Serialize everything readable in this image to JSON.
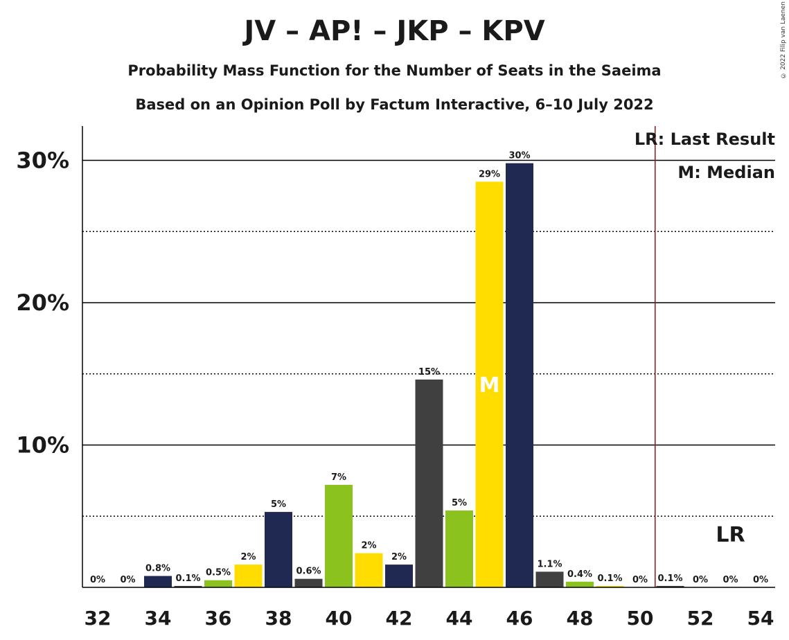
{
  "chart_data": {
    "type": "bar",
    "title": "JV – AP! – JKP – KPV",
    "subtitle_1": "Probability Mass Function for the Number of Seats in the Saeima",
    "subtitle_2": "Based on an Opinion Poll by Factum Interactive, 6–10 July 2022",
    "copyright": "© 2022 Filip van Laenen",
    "x": [
      32,
      33,
      34,
      35,
      36,
      37,
      38,
      39,
      40,
      41,
      42,
      43,
      44,
      45,
      46,
      47,
      48,
      49,
      50,
      51,
      52,
      53,
      54
    ],
    "x_tick_labels": [
      "32",
      "34",
      "36",
      "38",
      "40",
      "42",
      "44",
      "46",
      "48",
      "50",
      "52",
      "54"
    ],
    "values": [
      0,
      0,
      0.8,
      0.1,
      0.5,
      1.6,
      5.3,
      0.6,
      7.2,
      2.4,
      1.6,
      14.6,
      5.4,
      28.5,
      29.8,
      1.1,
      0.4,
      0.1,
      0,
      0.1,
      0,
      0,
      0
    ],
    "labels": [
      "0%",
      "0%",
      "0.8%",
      "0.1%",
      "0.5%",
      "2%",
      "5%",
      "0.6%",
      "7%",
      "2%",
      "2%",
      "15%",
      "5%",
      "29%",
      "30%",
      "1.1%",
      "0.4%",
      "0.1%",
      "0%",
      "0.1%",
      "0%",
      "0%",
      "0%"
    ],
    "bar_colors": [
      "#1f2951",
      "#ffdd00",
      "#1f2951",
      "#404040",
      "#8cc21e",
      "#ffdd00",
      "#1f2951",
      "#404040",
      "#8cc21e",
      "#ffdd00",
      "#1f2951",
      "#404040",
      "#8cc21e",
      "#ffdd00",
      "#1f2951",
      "#404040",
      "#8cc21e",
      "#ffdd00",
      "#1f2951",
      "#404040",
      "#8cc21e",
      "#ffdd00",
      "#1f2951"
    ],
    "ylim": [
      0,
      32
    ],
    "y_major_ticks": [
      10,
      20,
      30
    ],
    "y_tick_labels": [
      "10%",
      "20%",
      "30%"
    ],
    "y_minor_gridlines": [
      5,
      15,
      25
    ],
    "median_seat": 45,
    "median_marker": "M",
    "last_result_seat": 50.5,
    "last_result_marker": "LR",
    "legend": [
      "LR: Last Result",
      "M: Median"
    ],
    "legend_position": "top-right",
    "colors": {
      "lr_line": "#8b1a1a",
      "axis": "#000000"
    }
  }
}
